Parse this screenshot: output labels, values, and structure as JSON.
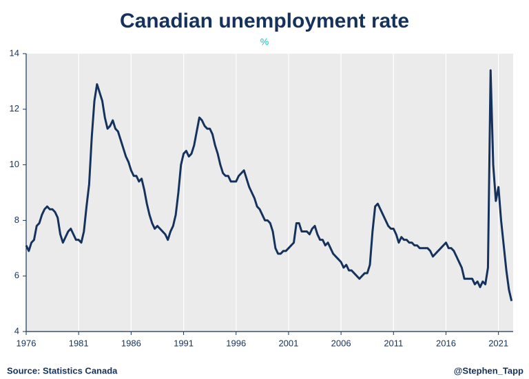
{
  "chart_data": {
    "type": "line",
    "title": "Canadian unemployment rate",
    "subtitle": "%",
    "source": "Source: Statistics Canada",
    "credit": "@Stephen_Tapp",
    "x": [
      1976,
      1976.25,
      1976.5,
      1976.75,
      1977,
      1977.25,
      1977.5,
      1977.75,
      1978,
      1978.25,
      1978.5,
      1978.75,
      1979,
      1979.25,
      1979.5,
      1979.75,
      1980,
      1980.25,
      1980.5,
      1980.75,
      1981,
      1981.25,
      1981.5,
      1981.75,
      1982,
      1982.25,
      1982.5,
      1982.75,
      1983,
      1983.25,
      1983.5,
      1983.75,
      1984,
      1984.25,
      1984.5,
      1984.75,
      1985,
      1985.25,
      1985.5,
      1985.75,
      1986,
      1986.25,
      1986.5,
      1986.75,
      1987,
      1987.25,
      1987.5,
      1987.75,
      1988,
      1988.25,
      1988.5,
      1988.75,
      1989,
      1989.25,
      1989.5,
      1989.75,
      1990,
      1990.25,
      1990.5,
      1990.75,
      1991,
      1991.25,
      1991.5,
      1991.75,
      1992,
      1992.25,
      1992.5,
      1992.75,
      1993,
      1993.25,
      1993.5,
      1993.75,
      1994,
      1994.25,
      1994.5,
      1994.75,
      1995,
      1995.25,
      1995.5,
      1995.75,
      1996,
      1996.25,
      1996.5,
      1996.75,
      1997,
      1997.25,
      1997.5,
      1997.75,
      1998,
      1998.25,
      1998.5,
      1998.75,
      1999,
      1999.25,
      1999.5,
      1999.75,
      2000,
      2000.25,
      2000.5,
      2000.75,
      2001,
      2001.25,
      2001.5,
      2001.75,
      2002,
      2002.25,
      2002.5,
      2002.75,
      2003,
      2003.25,
      2003.5,
      2003.75,
      2004,
      2004.25,
      2004.5,
      2004.75,
      2005,
      2005.25,
      2005.5,
      2005.75,
      2006,
      2006.25,
      2006.5,
      2006.75,
      2007,
      2007.25,
      2007.5,
      2007.75,
      2008,
      2008.25,
      2008.5,
      2008.75,
      2009,
      2009.25,
      2009.5,
      2009.75,
      2010,
      2010.25,
      2010.5,
      2010.75,
      2011,
      2011.25,
      2011.5,
      2011.75,
      2012,
      2012.25,
      2012.5,
      2012.75,
      2013,
      2013.25,
      2013.5,
      2013.75,
      2014,
      2014.25,
      2014.5,
      2014.75,
      2015,
      2015.25,
      2015.5,
      2015.75,
      2016,
      2016.25,
      2016.5,
      2016.75,
      2017,
      2017.25,
      2017.5,
      2017.75,
      2018,
      2018.25,
      2018.5,
      2018.75,
      2019,
      2019.25,
      2019.5,
      2019.75,
      2020,
      2020.25,
      2020.5,
      2020.75,
      2021,
      2021.25,
      2021.5,
      2021.75,
      2022,
      2022.25
    ],
    "series": [
      {
        "name": "Unemployment rate",
        "color": "#14325c",
        "values": [
          7.1,
          6.9,
          7.2,
          7.3,
          7.8,
          7.9,
          8.2,
          8.4,
          8.5,
          8.4,
          8.4,
          8.3,
          8.1,
          7.5,
          7.2,
          7.4,
          7.6,
          7.7,
          7.5,
          7.3,
          7.3,
          7.2,
          7.6,
          8.5,
          9.3,
          11.0,
          12.3,
          12.9,
          12.6,
          12.3,
          11.7,
          11.3,
          11.4,
          11.6,
          11.3,
          11.2,
          10.9,
          10.6,
          10.3,
          10.1,
          9.8,
          9.6,
          9.6,
          9.4,
          9.5,
          9.1,
          8.6,
          8.2,
          7.9,
          7.7,
          7.8,
          7.7,
          7.6,
          7.5,
          7.3,
          7.6,
          7.8,
          8.2,
          9.0,
          10.0,
          10.4,
          10.5,
          10.3,
          10.4,
          10.7,
          11.2,
          11.7,
          11.6,
          11.4,
          11.3,
          11.3,
          11.1,
          10.7,
          10.4,
          10.0,
          9.7,
          9.6,
          9.6,
          9.4,
          9.4,
          9.4,
          9.6,
          9.7,
          9.8,
          9.5,
          9.2,
          9.0,
          8.8,
          8.5,
          8.4,
          8.2,
          8.0,
          8.0,
          7.9,
          7.6,
          7.0,
          6.8,
          6.8,
          6.9,
          6.9,
          7.0,
          7.1,
          7.2,
          7.9,
          7.9,
          7.6,
          7.6,
          7.6,
          7.5,
          7.7,
          7.8,
          7.5,
          7.3,
          7.3,
          7.1,
          7.2,
          7.0,
          6.8,
          6.7,
          6.6,
          6.5,
          6.3,
          6.4,
          6.2,
          6.2,
          6.1,
          6.0,
          5.9,
          6.0,
          6.1,
          6.1,
          6.4,
          7.6,
          8.5,
          8.6,
          8.4,
          8.2,
          8.0,
          7.8,
          7.7,
          7.7,
          7.5,
          7.2,
          7.4,
          7.3,
          7.3,
          7.2,
          7.2,
          7.1,
          7.1,
          7.0,
          7.0,
          7.0,
          7.0,
          6.9,
          6.7,
          6.8,
          6.9,
          7.0,
          7.1,
          7.2,
          7.0,
          7.0,
          6.9,
          6.7,
          6.5,
          6.3,
          5.9,
          5.9,
          5.9,
          5.9,
          5.7,
          5.8,
          5.6,
          5.8,
          5.7,
          6.3,
          13.4,
          10.0,
          8.7,
          9.2,
          8.0,
          7.1,
          6.2,
          5.5,
          5.1
        ]
      }
    ],
    "xlim": [
      1976,
      2022.4
    ],
    "xticks": [
      1976,
      1981,
      1986,
      1991,
      1996,
      2001,
      2006,
      2011,
      2016,
      2021
    ],
    "ylim": [
      4,
      14
    ],
    "yticks": [
      4,
      6,
      8,
      10,
      12,
      14
    ],
    "grid": true
  }
}
